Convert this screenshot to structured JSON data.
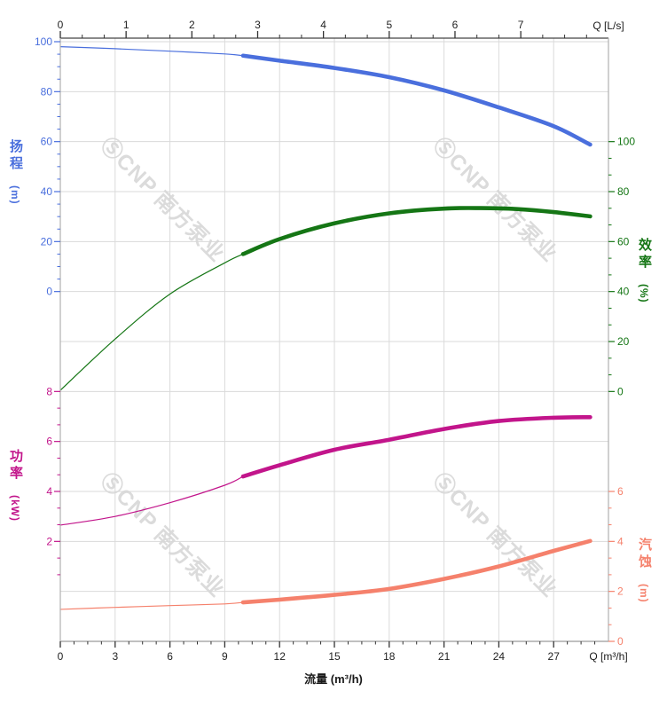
{
  "chart_data": {
    "type": "line",
    "title": "",
    "x_bottom": {
      "title": "流量 (m³/h)",
      "end_label": "Q [m³/h]",
      "major_ticks": [
        0,
        3,
        6,
        9,
        12,
        15,
        18,
        21,
        24,
        27
      ],
      "minor_step": 0.75,
      "range": [
        0,
        30
      ]
    },
    "x_top": {
      "end_label": "Q [L/s]",
      "major_ticks": [
        0,
        1,
        2,
        3,
        4,
        5,
        6,
        7
      ],
      "minor_step": 0.33333,
      "range": [
        0,
        8.333
      ]
    },
    "axes": {
      "head": {
        "title": "扬程",
        "unit": "(m)",
        "color": "#4a6fdd",
        "side": "left",
        "major_ticks": [
          100,
          80,
          60,
          40,
          20,
          0
        ],
        "minor_step": 5
      },
      "power": {
        "title": "功率",
        "unit": "(kW)",
        "color": "#c2158b",
        "side": "left",
        "major_ticks": [
          8,
          6,
          4,
          2
        ],
        "minor_step": 0.66667
      },
      "eff": {
        "title": "效率",
        "unit": "(%)",
        "color": "#157615",
        "side": "right",
        "major_ticks": [
          100,
          80,
          60,
          40,
          20,
          0
        ],
        "minor_step": 6.66667
      },
      "npsh": {
        "title": "汽蚀",
        "unit": "(m)",
        "color": "#f5816c",
        "side": "right",
        "major_ticks": [
          6,
          4,
          2,
          0
        ],
        "minor_step": 0.66667
      }
    },
    "duty_flow_range": [
      10,
      29
    ],
    "series": [
      {
        "id": "head-curve",
        "axis": "head",
        "color": "#4a6fdd",
        "points": [
          [
            0,
            98
          ],
          [
            3,
            97.2
          ],
          [
            6,
            96.2
          ],
          [
            9,
            95.1
          ],
          [
            10,
            94.4
          ],
          [
            12,
            92.4
          ],
          [
            15,
            89.5
          ],
          [
            18,
            85.8
          ],
          [
            21,
            80.5
          ],
          [
            24,
            73.7
          ],
          [
            27,
            66.2
          ],
          [
            29,
            58.8
          ]
        ]
      },
      {
        "id": "eff-curve",
        "axis": "eff",
        "color": "#157615",
        "points": [
          [
            0,
            0.5
          ],
          [
            3,
            21
          ],
          [
            6,
            39
          ],
          [
            9,
            51.5
          ],
          [
            10,
            55
          ],
          [
            12,
            61
          ],
          [
            15,
            67.3
          ],
          [
            18,
            71.3
          ],
          [
            21,
            73.2
          ],
          [
            23,
            73.4
          ],
          [
            25,
            73.0
          ],
          [
            27,
            71.8
          ],
          [
            29,
            70.1
          ]
        ]
      },
      {
        "id": "power-curve",
        "axis": "power",
        "color": "#c2158b",
        "points": [
          [
            0,
            2.65
          ],
          [
            3,
            3.0
          ],
          [
            6,
            3.55
          ],
          [
            9,
            4.25
          ],
          [
            10,
            4.6
          ],
          [
            12,
            5.05
          ],
          [
            15,
            5.67
          ],
          [
            18,
            6.07
          ],
          [
            21,
            6.5
          ],
          [
            24,
            6.82
          ],
          [
            27,
            6.95
          ],
          [
            29,
            6.97
          ]
        ]
      },
      {
        "id": "npsh-curve",
        "axis": "npsh",
        "color": "#f5816c",
        "points": [
          [
            0,
            1.28
          ],
          [
            3,
            1.36
          ],
          [
            6,
            1.43
          ],
          [
            9,
            1.5
          ],
          [
            10,
            1.56
          ],
          [
            12,
            1.67
          ],
          [
            15,
            1.86
          ],
          [
            18,
            2.1
          ],
          [
            21,
            2.5
          ],
          [
            24,
            3.0
          ],
          [
            27,
            3.62
          ],
          [
            29,
            4.02
          ]
        ]
      }
    ]
  },
  "watermark": {
    "logo_glyph": "Ⓢ",
    "text": "CNP 南方泵业",
    "color": "#d7d7d7"
  }
}
